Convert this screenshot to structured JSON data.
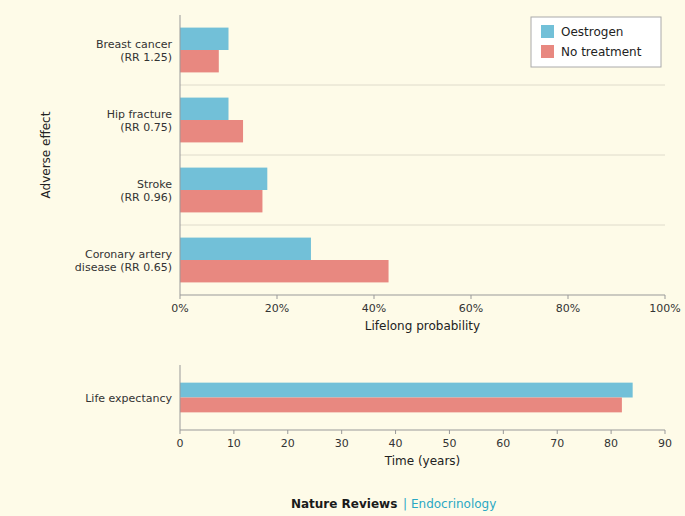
{
  "chart_data": [
    {
      "type": "bar",
      "orientation": "horizontal",
      "categories": [
        "Breast cancer\n(RR 1.25)",
        "Hip fracture\n(RR 0.75)",
        "Stroke\n(RR 0.96)",
        "Coronary artery\ndisease (RR 0.65)"
      ],
      "series": [
        {
          "name": "Oestrogen",
          "color": "#72C0D8",
          "values": [
            10,
            10,
            18,
            27
          ]
        },
        {
          "name": "No treatment",
          "color": "#E88880",
          "values": [
            8,
            13,
            17,
            43
          ]
        }
      ],
      "x_label": "Lifelong probability",
      "y_label": "Adverse effect",
      "xlim": [
        0,
        100
      ],
      "xticks": [
        {
          "value": 0,
          "label": "0%"
        },
        {
          "value": 20,
          "label": "20%"
        },
        {
          "value": 40,
          "label": "40%"
        },
        {
          "value": 60,
          "label": "60%"
        },
        {
          "value": 80,
          "label": "80%"
        },
        {
          "value": 100,
          "label": "100%"
        }
      ],
      "grid": false,
      "legend": "upper right"
    },
    {
      "type": "bar",
      "orientation": "horizontal",
      "categories": [
        "Life expectancy"
      ],
      "series": [
        {
          "color": "#72C0D8",
          "values": [
            84
          ]
        },
        {
          "color": "#E88880",
          "values": [
            82
          ]
        }
      ],
      "x_label": "Time (years)",
      "xlim": [
        0,
        90
      ],
      "xticks": [
        0,
        10,
        20,
        30,
        40,
        50,
        60,
        70,
        80,
        90
      ],
      "grid": false,
      "annotations": [
        {
          "text": "Nature Reviews",
          "color": "#1a1a1a"
        },
        {
          "text": " | Endocrinology",
          "color": "#2AA8C4"
        }
      ]
    }
  ]
}
